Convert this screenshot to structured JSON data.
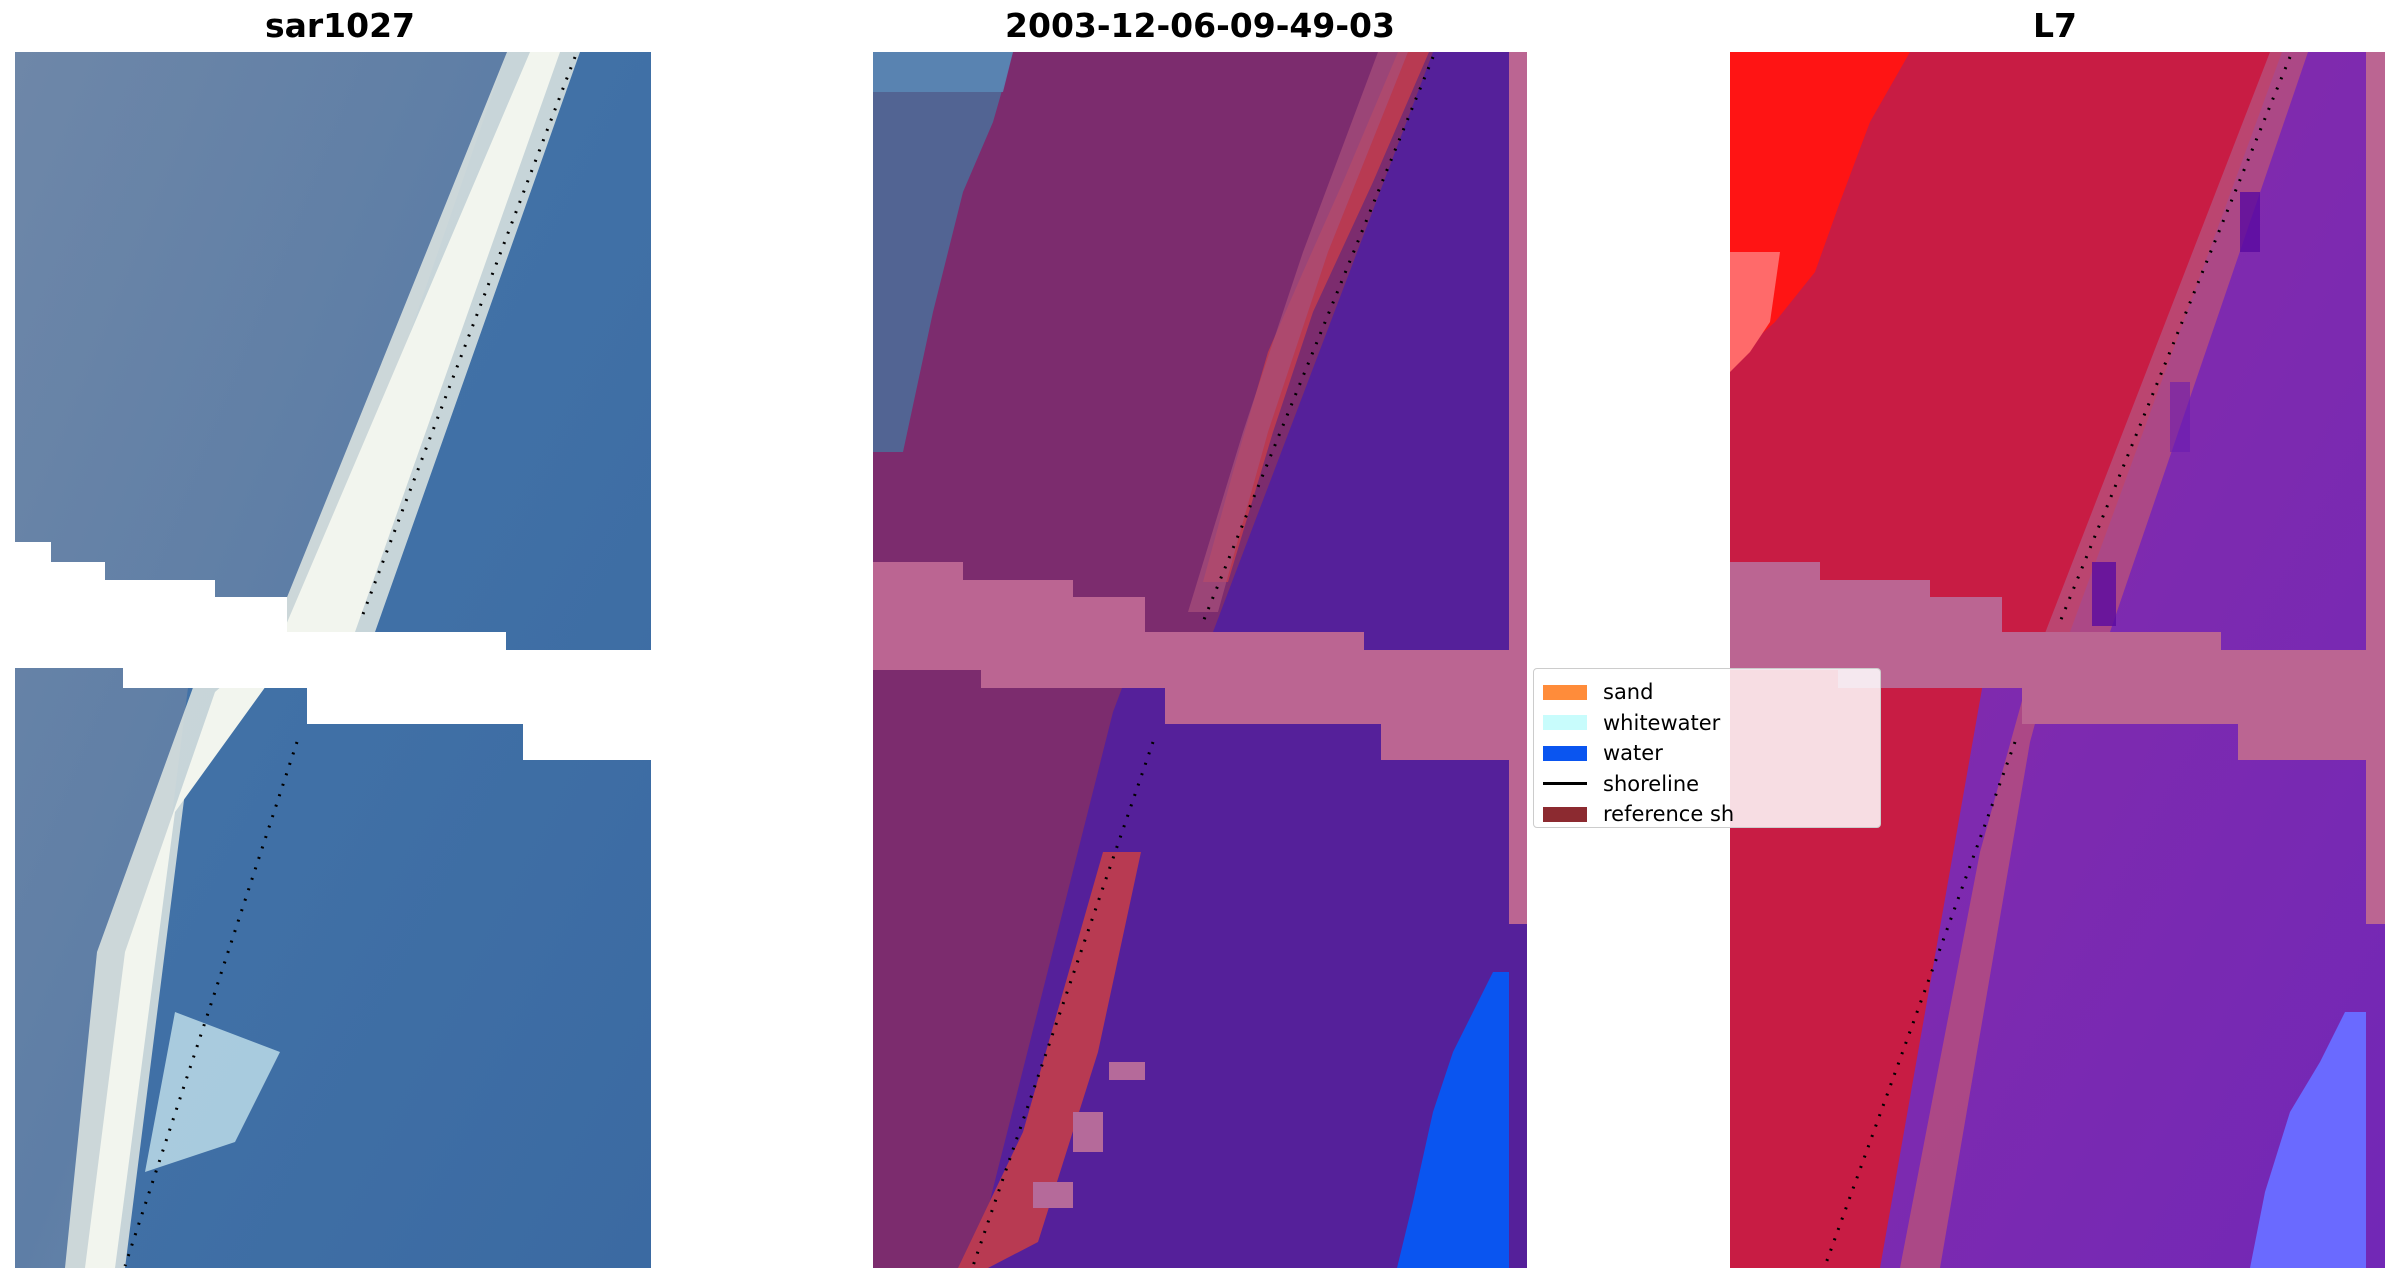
{
  "panels": [
    {
      "title": "sar1027"
    },
    {
      "title": "2003-12-06-09-49-03"
    },
    {
      "title": "L7"
    }
  ],
  "legend": {
    "items": [
      {
        "label": "sand",
        "color": "#ff8c3a",
        "kind": "patch"
      },
      {
        "label": "whitewater",
        "color": "#c8fcfc",
        "kind": "patch"
      },
      {
        "label": "water",
        "color": "#0a55f0",
        "kind": "patch"
      },
      {
        "label": "shoreline",
        "color": "#000000",
        "kind": "line"
      },
      {
        "label": "reference sh",
        "color": "#8c2a30",
        "kind": "patch"
      }
    ]
  },
  "colors": {
    "rgb_sea": "#3d6ea6",
    "rgb_land": "#6a86a8",
    "rgb_beach": "#eef2ea",
    "class_land": "#7c2c6e",
    "class_sand": "#b83a52",
    "class_water": "#55209a",
    "class_whitewater_like": "#0a55f0",
    "nodata": "#bb6592",
    "index_land": "#c81c44",
    "index_water": "#7a2cae",
    "index_bright": "#ff1414"
  }
}
